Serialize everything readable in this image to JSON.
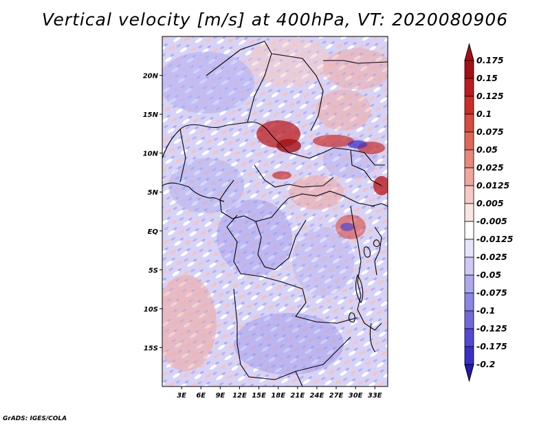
{
  "title": "Vertical velocity [m/s] at 400hPa, VT: 2020080906",
  "credit": "GrADS: IGES/COLA",
  "map": {
    "lon_range": [
      0,
      35
    ],
    "lat_range": [
      -20,
      25
    ],
    "x_ticks": [
      {
        "value": 3,
        "label": "3E"
      },
      {
        "value": 6,
        "label": "6E"
      },
      {
        "value": 9,
        "label": "9E"
      },
      {
        "value": 12,
        "label": "12E"
      },
      {
        "value": 15,
        "label": "15E"
      },
      {
        "value": 18,
        "label": "18E"
      },
      {
        "value": 21,
        "label": "21E"
      },
      {
        "value": 24,
        "label": "24E"
      },
      {
        "value": 27,
        "label": "27E"
      },
      {
        "value": 30,
        "label": "30E"
      },
      {
        "value": 33,
        "label": "33E"
      }
    ],
    "y_ticks": [
      {
        "value": 20,
        "label": "20N"
      },
      {
        "value": 15,
        "label": "15N"
      },
      {
        "value": 10,
        "label": "10N"
      },
      {
        "value": 5,
        "label": "5N"
      },
      {
        "value": 0,
        "label": "EQ"
      },
      {
        "value": -5,
        "label": "5S"
      },
      {
        "value": -10,
        "label": "10S"
      },
      {
        "value": -15,
        "label": "15S"
      }
    ]
  },
  "colorbar": {
    "levels": [
      {
        "label": "0.175",
        "color": "#a50f15"
      },
      {
        "label": "0.15",
        "color": "#bb1c1f"
      },
      {
        "label": "0.125",
        "color": "#cb2e2a"
      },
      {
        "label": "0.1",
        "color": "#d94a3f"
      },
      {
        "label": "0.075",
        "color": "#e06856"
      },
      {
        "label": "0.05",
        "color": "#e8877a"
      },
      {
        "label": "0.025",
        "color": "#f0a7a0"
      },
      {
        "label": "0.0125",
        "color": "#f6c9c6"
      },
      {
        "label": "0.005",
        "color": "#fbe5e4"
      },
      {
        "label": "-0.005",
        "color": "#ffffff"
      },
      {
        "label": "-0.0125",
        "color": "#e6e4fa"
      },
      {
        "label": "-0.025",
        "color": "#cdc9f4"
      },
      {
        "label": "-0.05",
        "color": "#aea8ee"
      },
      {
        "label": "-0.075",
        "color": "#8e86e4"
      },
      {
        "label": "-0.1",
        "color": "#7168dc"
      },
      {
        "label": "-0.125",
        "color": "#5449d2"
      },
      {
        "label": "-0.175",
        "color": "#3a2fc4"
      },
      {
        "label": "-0.2",
        "color": "#2418b0"
      }
    ],
    "top_arrow_color": "#a50f15",
    "bottom_arrow_color": "#2418b0"
  }
}
